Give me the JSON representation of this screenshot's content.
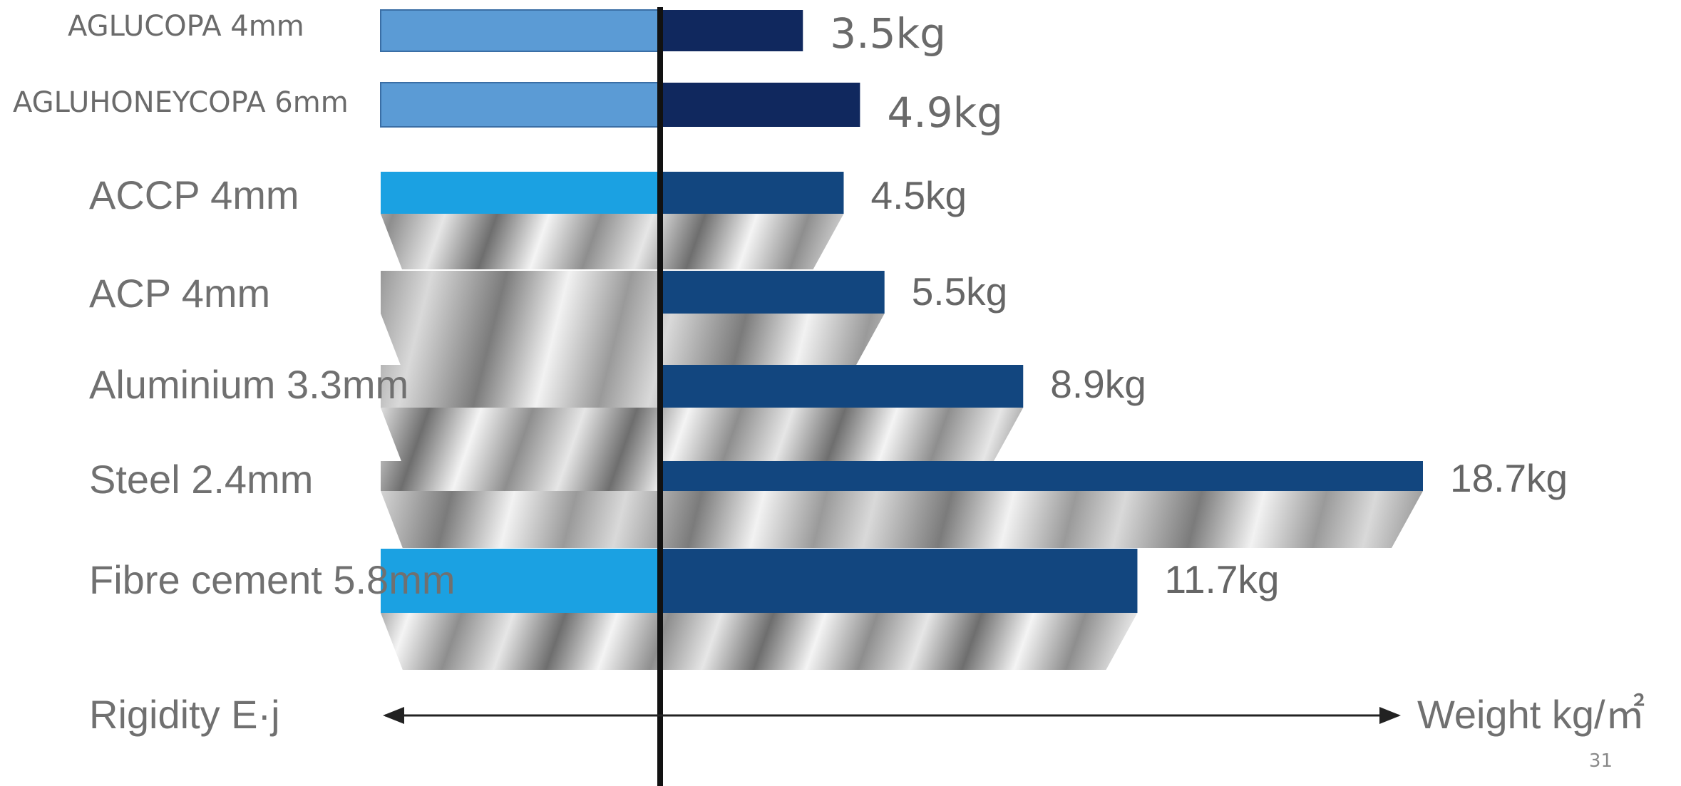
{
  "chart_data": {
    "type": "bar",
    "categories": [
      "AGLUCOPA 4mm",
      "AGLUHONEYCOPA 6mm",
      "ACCP 4mm",
      "ACP 4mm",
      "Aluminium 3.3mm",
      "Steel 2.4mm",
      "Fibre cement 5.8mm"
    ],
    "series": [
      {
        "values": [
          3.5,
          4.9,
          4.5,
          5.5,
          8.9,
          18.7,
          11.7
        ]
      }
    ],
    "value_labels": [
      "3.5kg",
      "4.9kg",
      "4.5kg",
      "5.5kg",
      "8.9kg",
      "18.7kg",
      "11.7kg"
    ],
    "left_axis_label": "Rigidity E·j",
    "right_axis_label": "Weight kg/㎡",
    "colors": {
      "weight_bar_new": "#10285e",
      "weight_bar_old": "#12467f",
      "rigidity_bar_new": "#5b9bd5",
      "rigidity_bar_old": "#1ba1e2",
      "text": "#6d6d6d"
    }
  },
  "page_number": "31"
}
